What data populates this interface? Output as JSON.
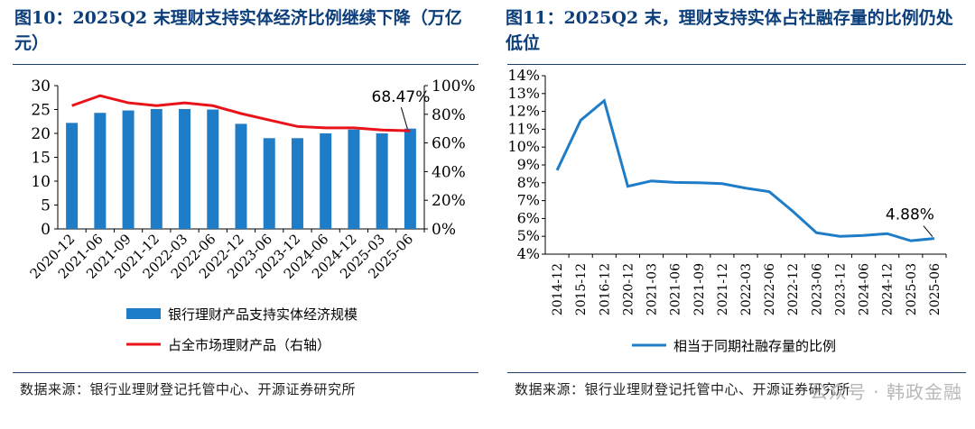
{
  "left": {
    "title_line1": "图10：2025Q2 末理财支持实体经济比例继续下降（万亿",
    "title_line2": "元）",
    "source": "数据来源：银行业理财登记托管中心、开源证券研究所",
    "chart_data": {
      "type": "bar",
      "categories": [
        "2020-12",
        "2021-06",
        "2021-09",
        "2021-12",
        "2022-03",
        "2022-06",
        "2022-12",
        "2023-06",
        "2023-12",
        "2024-06",
        "2024-12",
        "2025-03",
        "2025-06"
      ],
      "series": [
        {
          "name": "银行理财产品支持实体经济规模",
          "type": "bar",
          "axis": "left",
          "color": "#1f7dc8",
          "values": [
            22.2,
            24.3,
            24.8,
            25.1,
            25.1,
            25.0,
            22.0,
            19.0,
            19.0,
            20.0,
            20.8,
            20.0,
            21.0
          ]
        },
        {
          "name": "占全市场理财产品（右轴）",
          "type": "line",
          "axis": "right",
          "color": "#e8141a",
          "values": [
            86.0,
            93.0,
            88.0,
            86.0,
            88.0,
            86.0,
            80.5,
            76.0,
            71.5,
            70.5,
            70.5,
            69.0,
            68.47
          ]
        }
      ],
      "y_left": {
        "min": 0,
        "max": 30,
        "ticks": [
          "0",
          "5",
          "10",
          "15",
          "20",
          "25",
          "30"
        ]
      },
      "y_right": {
        "min": 0,
        "max": 100,
        "ticks": [
          "0%",
          "20%",
          "40%",
          "60%",
          "80%",
          "100%"
        ]
      },
      "annotation": {
        "text": "68.47%",
        "index": 12
      },
      "legend_position": "bottom"
    }
  },
  "right": {
    "title_line1": "图11：2025Q2 末，理财支持实体占社融存量的比例仍处",
    "title_line2": "低位",
    "source": "数据来源：银行业理财登记托管中心、开源证券研究所",
    "watermark": "公众号 · 韩政金融",
    "chart_data": {
      "type": "line",
      "categories": [
        "2014-12",
        "2015-12",
        "2016-12",
        "2020-12",
        "2021-03",
        "2021-06",
        "2021-09",
        "2021-12",
        "2022-03",
        "2022-06",
        "2022-12",
        "2023-06",
        "2023-12",
        "2024-06",
        "2024-12",
        "2025-03",
        "2025-06"
      ],
      "series": [
        {
          "name": "相当于同期社融存量的比例",
          "color": "#1f7dc8",
          "values": [
            8.7,
            11.5,
            12.6,
            7.8,
            8.1,
            8.02,
            8.0,
            7.95,
            7.7,
            7.5,
            6.4,
            5.2,
            5.0,
            5.05,
            5.15,
            4.75,
            4.88
          ]
        }
      ],
      "y": {
        "min": 4,
        "max": 14,
        "ticks": [
          "4%",
          "5%",
          "6%",
          "7%",
          "8%",
          "9%",
          "10%",
          "11%",
          "12%",
          "13%",
          "14%"
        ]
      },
      "annotation": {
        "text": "4.88%",
        "index": 16
      },
      "legend_position": "bottom"
    }
  }
}
